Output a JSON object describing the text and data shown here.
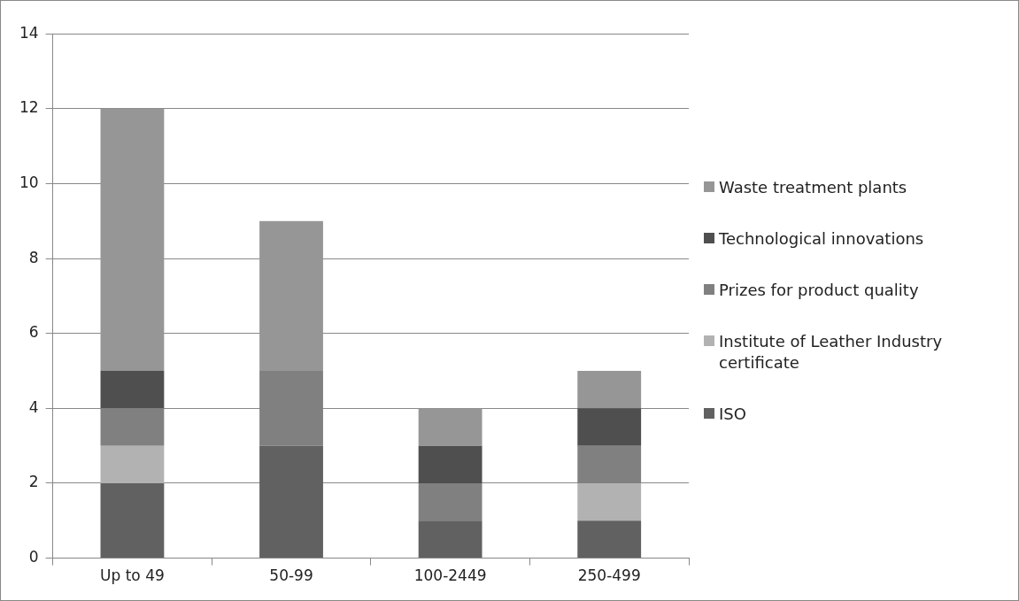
{
  "chart_data": {
    "type": "bar",
    "stacked": true,
    "categories": [
      "Up to 49",
      "50-99",
      "100-2449",
      "250-499"
    ],
    "series": [
      {
        "name": "ISO",
        "color": "#616161",
        "values": [
          2,
          3,
          1,
          1
        ]
      },
      {
        "name": "Institute of Leather Industry certificate",
        "color": "#b2b2b2",
        "values": [
          1,
          0,
          0,
          1
        ]
      },
      {
        "name": "Prizes for product quality",
        "color": "#808080",
        "values": [
          1,
          2,
          1,
          1
        ]
      },
      {
        "name": "Technological innovations",
        "color": "#4f4f4f",
        "values": [
          1,
          0,
          1,
          1
        ]
      },
      {
        "name": "Waste treatment plants",
        "color": "#969696",
        "values": [
          7,
          4,
          1,
          1
        ]
      }
    ],
    "ylim": [
      0,
      14
    ],
    "yticks": [
      0,
      2,
      4,
      6,
      8,
      10,
      12,
      14
    ],
    "grid": "y",
    "legend": "right"
  }
}
